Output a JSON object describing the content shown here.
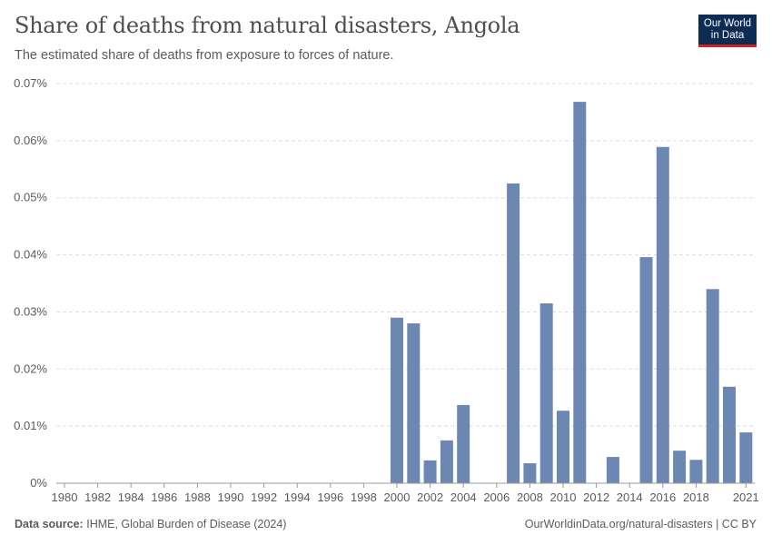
{
  "header": {
    "title": "Share of deaths from natural disasters, Angola",
    "subtitle": "The estimated share of deaths from exposure to forces of nature."
  },
  "logo": {
    "line1": "Our World",
    "line2": "in Data"
  },
  "footer": {
    "source_label": "Data source:",
    "source_text": "IHME, Global Burden of Disease (2024)",
    "link_text": "OurWorldinData.org/natural-disasters | CC BY"
  },
  "colors": {
    "bar": "#6d87b3",
    "grid": "#dddddd",
    "axis": "#999999",
    "text": "#5b5b5b"
  },
  "chart_data": {
    "type": "bar",
    "title": "Share of deaths from natural disasters, Angola",
    "xlabel": "",
    "ylabel": "",
    "unit": "%",
    "ylim": [
      0,
      0.07
    ],
    "y_ticks": [
      0,
      0.01,
      0.02,
      0.03,
      0.04,
      0.05,
      0.06,
      0.07
    ],
    "y_tick_labels": [
      "0%",
      "0.01%",
      "0.02%",
      "0.03%",
      "0.04%",
      "0.05%",
      "0.06%",
      "0.07%"
    ],
    "x_range": [
      1980,
      2021
    ],
    "x_tick_labels": [
      "1980",
      "1982",
      "1984",
      "1986",
      "1988",
      "1990",
      "1992",
      "1994",
      "1996",
      "1998",
      "2000",
      "2002",
      "2004",
      "2006",
      "2008",
      "2010",
      "2012",
      "2014",
      "2016",
      "2018",
      "2021"
    ],
    "categories": [
      2000,
      2001,
      2002,
      2003,
      2004,
      2007,
      2008,
      2009,
      2010,
      2011,
      2013,
      2015,
      2016,
      2017,
      2018,
      2019,
      2020,
      2021
    ],
    "values": [
      0.029,
      0.028,
      0.004,
      0.0075,
      0.0137,
      0.0525,
      0.0035,
      0.0315,
      0.0127,
      0.0668,
      0.0046,
      0.0396,
      0.0589,
      0.0057,
      0.0041,
      0.034,
      0.0169,
      0.0089
    ],
    "grid": true,
    "legend": "none"
  }
}
